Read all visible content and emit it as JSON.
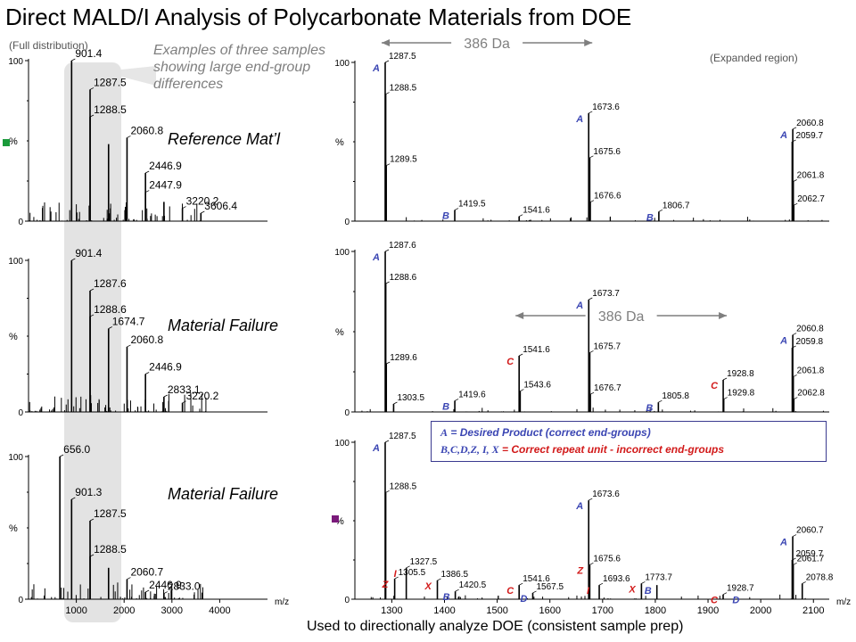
{
  "title": "Direct MALD/I Analysis of Polycarbonate Materials from DOE",
  "full_label": "(Full distribution)",
  "expanded_label": "(Expanded region)",
  "note": "Examples of three samples showing large end-group differences",
  "sample_labels": [
    "Reference Mat’l",
    "Material Failure",
    "Material Failure"
  ],
  "caption": "Used to directionally analyze DOE (consistent sample prep)",
  "legend": {
    "line1_sym": "A",
    "line1_text": " = Desired Product (correct end-groups)",
    "line2_sym": "B,C,D,Z, I, X",
    "line2_text": " = Correct repeat unit - incorrect end-groups"
  },
  "colors": {
    "blue": "#3b46b3",
    "red": "#d21a1a",
    "green": "#1a9a3a",
    "purple": "#7a1a7a",
    "band": "#e3e3e3"
  },
  "chart_data": [
    {
      "type": "bar",
      "panel": "full-1",
      "xlabel": "",
      "ylabel": "%",
      "xlim": [
        0,
        5000
      ],
      "ylim": [
        0,
        100
      ],
      "yticks": [
        0,
        100
      ],
      "xticks": [],
      "peaks": [
        [
          901.4,
          100
        ],
        [
          1287.5,
          82
        ],
        [
          1288.5,
          65
        ],
        [
          1674.7,
          48
        ],
        [
          2060.8,
          52
        ],
        [
          2446.9,
          30
        ],
        [
          2447.9,
          18
        ],
        [
          2833.1,
          12
        ],
        [
          3220.2,
          8
        ],
        [
          3606.4,
          5
        ]
      ],
      "labels": [
        {
          "t": "901.4",
          "x": 901.4,
          "y": 100
        },
        {
          "t": "1287.5",
          "x": 1287.5,
          "y": 82
        },
        {
          "t": "1288.5",
          "x": 1288.5,
          "y": 65
        },
        {
          "t": "2060.8",
          "x": 2060.8,
          "y": 52
        },
        {
          "t": "2446.9",
          "x": 2446.9,
          "y": 30
        },
        {
          "t": "2447.9",
          "x": 2447.9,
          "y": 18
        },
        {
          "t": "3220.2",
          "x": 3220.2,
          "y": 8
        },
        {
          "t": "3606.4",
          "x": 3606.4,
          "y": 5
        }
      ]
    },
    {
      "type": "bar",
      "panel": "full-2",
      "xlabel": "",
      "ylabel": "%",
      "xlim": [
        0,
        5000
      ],
      "ylim": [
        0,
        100
      ],
      "yticks": [
        0,
        100
      ],
      "xticks": [],
      "peaks": [
        [
          901.4,
          100
        ],
        [
          1287.6,
          80
        ],
        [
          1288.6,
          63
        ],
        [
          1674.7,
          55
        ],
        [
          2060.8,
          43
        ],
        [
          2446.9,
          25
        ],
        [
          2833.1,
          10
        ],
        [
          3220.2,
          6
        ]
      ],
      "labels": [
        {
          "t": "901.4",
          "x": 901.4,
          "y": 100
        },
        {
          "t": "1287.6",
          "x": 1287.6,
          "y": 80
        },
        {
          "t": "1288.6",
          "x": 1288.6,
          "y": 63
        },
        {
          "t": "1674.7",
          "x": 1674.7,
          "y": 55
        },
        {
          "t": "2060.8",
          "x": 2060.8,
          "y": 43
        },
        {
          "t": "2446.9",
          "x": 2446.9,
          "y": 25
        },
        {
          "t": "2833.1",
          "x": 2833.1,
          "y": 10
        },
        {
          "t": "3220.2",
          "x": 3220.2,
          "y": 6
        }
      ]
    },
    {
      "type": "bar",
      "panel": "full-3",
      "xlabel": "m/z",
      "ylabel": "%",
      "xlim": [
        0,
        5000
      ],
      "ylim": [
        0,
        100
      ],
      "yticks": [
        0,
        100
      ],
      "xticks": [
        1000,
        2000,
        3000,
        4000
      ],
      "peaks": [
        [
          656.0,
          100
        ],
        [
          901.3,
          70
        ],
        [
          1287.5,
          55
        ],
        [
          1288.5,
          30
        ],
        [
          1674.7,
          22
        ],
        [
          2060.7,
          14
        ],
        [
          2446.9,
          5
        ],
        [
          2833.0,
          4
        ]
      ],
      "labels": [
        {
          "t": "656.0",
          "x": 656.0,
          "y": 100
        },
        {
          "t": "901.3",
          "x": 901.3,
          "y": 70
        },
        {
          "t": "1287.5",
          "x": 1287.5,
          "y": 55
        },
        {
          "t": "1288.5",
          "x": 1288.5,
          "y": 30
        },
        {
          "t": "2060.7",
          "x": 2060.7,
          "y": 14
        },
        {
          "t": "2446.9",
          "x": 2446.9,
          "y": 5
        },
        {
          "t": "2833.0",
          "x": 2833.0,
          "y": 4
        }
      ]
    },
    {
      "type": "bar",
      "panel": "expanded-1",
      "xlabel": "",
      "ylabel": "%",
      "xlim": [
        1230,
        2130
      ],
      "ylim": [
        0,
        100
      ],
      "yticks": [
        0,
        100
      ],
      "xticks": [],
      "peaks": [
        [
          1287.5,
          100
        ],
        [
          1288.5,
          80
        ],
        [
          1289.5,
          35
        ],
        [
          1419.5,
          7
        ],
        [
          1541.6,
          3
        ],
        [
          1673.6,
          68
        ],
        [
          1675.6,
          40
        ],
        [
          1676.6,
          12
        ],
        [
          1806.7,
          6
        ],
        [
          2059.7,
          50
        ],
        [
          2060.8,
          58
        ],
        [
          2061.8,
          25
        ],
        [
          2062.7,
          10
        ]
      ],
      "labels": [
        {
          "t": "1287.5",
          "x": 1287.5,
          "y": 100
        },
        {
          "t": "1288.5",
          "x": 1288.5,
          "y": 80
        },
        {
          "t": "1289.5",
          "x": 1289.5,
          "y": 35
        },
        {
          "t": "1419.5",
          "x": 1419.5,
          "y": 7
        },
        {
          "t": "1541.6",
          "x": 1541.6,
          "y": 3
        },
        {
          "t": "1673.6",
          "x": 1673.6,
          "y": 68
        },
        {
          "t": "1675.6",
          "x": 1675.6,
          "y": 40
        },
        {
          "t": "1676.6",
          "x": 1676.6,
          "y": 12
        },
        {
          "t": "1806.7",
          "x": 1806.7,
          "y": 6
        },
        {
          "t": "2059.7",
          "x": 2059.7,
          "y": 50
        },
        {
          "t": "2060.8",
          "x": 2060.8,
          "y": 58
        },
        {
          "t": "2061.8",
          "x": 2061.8,
          "y": 25
        },
        {
          "t": "2062.7",
          "x": 2062.7,
          "y": 10
        }
      ],
      "annotations": [
        {
          "t": "A",
          "x": 1287.5,
          "y": 100,
          "c": "blue"
        },
        {
          "t": "A",
          "x": 1673.6,
          "y": 68,
          "c": "blue"
        },
        {
          "t": "A",
          "x": 2060.8,
          "y": 58,
          "c": "blue"
        },
        {
          "t": "B",
          "x": 1419.5,
          "y": 7,
          "c": "blue"
        },
        {
          "t": "B",
          "x": 1806.7,
          "y": 6,
          "c": "blue"
        }
      ],
      "span": {
        "t": "386 Da",
        "from": 1287.5,
        "to": 1673.6
      }
    },
    {
      "type": "bar",
      "panel": "expanded-2",
      "xlabel": "",
      "ylabel": "%",
      "xlim": [
        1230,
        2130
      ],
      "ylim": [
        0,
        100
      ],
      "yticks": [
        0,
        100
      ],
      "xticks": [],
      "peaks": [
        [
          1287.6,
          100
        ],
        [
          1288.6,
          80
        ],
        [
          1289.6,
          30
        ],
        [
          1303.5,
          5
        ],
        [
          1419.6,
          7
        ],
        [
          1541.6,
          35
        ],
        [
          1543.6,
          13
        ],
        [
          1673.7,
          70
        ],
        [
          1675.7,
          37
        ],
        [
          1676.7,
          11
        ],
        [
          1805.8,
          6
        ],
        [
          1928.8,
          20
        ],
        [
          1929.8,
          8
        ],
        [
          2059.8,
          40
        ],
        [
          2060.8,
          48
        ],
        [
          2061.8,
          22
        ],
        [
          2062.8,
          8
        ]
      ],
      "labels": [
        {
          "t": "1287.6",
          "x": 1287.6,
          "y": 100
        },
        {
          "t": "1288.6",
          "x": 1288.6,
          "y": 80
        },
        {
          "t": "1289.6",
          "x": 1289.6,
          "y": 30
        },
        {
          "t": "1303.5",
          "x": 1303.5,
          "y": 5
        },
        {
          "t": "1419.6",
          "x": 1419.6,
          "y": 7
        },
        {
          "t": "1541.6",
          "x": 1541.6,
          "y": 35
        },
        {
          "t": "1543.6",
          "x": 1543.6,
          "y": 13
        },
        {
          "t": "1673.7",
          "x": 1673.7,
          "y": 70
        },
        {
          "t": "1675.7",
          "x": 1675.7,
          "y": 37
        },
        {
          "t": "1676.7",
          "x": 1676.7,
          "y": 11
        },
        {
          "t": "1805.8",
          "x": 1805.8,
          "y": 6
        },
        {
          "t": "1928.8",
          "x": 1928.8,
          "y": 20
        },
        {
          "t": "1929.8",
          "x": 1929.8,
          "y": 8
        },
        {
          "t": "2059.8",
          "x": 2059.8,
          "y": 40
        },
        {
          "t": "2060.8",
          "x": 2060.8,
          "y": 48
        },
        {
          "t": "2061.8",
          "x": 2061.8,
          "y": 22
        },
        {
          "t": "2062.8",
          "x": 2062.8,
          "y": 8
        }
      ],
      "annotations": [
        {
          "t": "A",
          "x": 1287.6,
          "y": 100,
          "c": "blue"
        },
        {
          "t": "A",
          "x": 1673.7,
          "y": 70,
          "c": "blue"
        },
        {
          "t": "A",
          "x": 2060.8,
          "y": 48,
          "c": "blue"
        },
        {
          "t": "B",
          "x": 1419.6,
          "y": 7,
          "c": "blue"
        },
        {
          "t": "B",
          "x": 1805.8,
          "y": 6,
          "c": "blue"
        },
        {
          "t": "C",
          "x": 1541.6,
          "y": 35,
          "c": "red"
        },
        {
          "t": "C",
          "x": 1928.8,
          "y": 20,
          "c": "red"
        }
      ],
      "span": {
        "t": "386 Da",
        "from": 1541.6,
        "to": 1928.8
      }
    },
    {
      "type": "bar",
      "panel": "expanded-3",
      "xlabel": "m/z",
      "ylabel": "%",
      "xlim": [
        1230,
        2130
      ],
      "ylim": [
        0,
        100
      ],
      "yticks": [
        0,
        100
      ],
      "xticks": [
        1300,
        1400,
        1500,
        1600,
        1700,
        1800,
        1900,
        2000,
        2100
      ],
      "peaks": [
        [
          1287.5,
          100
        ],
        [
          1288.5,
          68
        ],
        [
          1305.5,
          13
        ],
        [
          1327.5,
          20
        ],
        [
          1386.5,
          12
        ],
        [
          1420.5,
          5
        ],
        [
          1541.6,
          9
        ],
        [
          1567.5,
          4
        ],
        [
          1673.6,
          63
        ],
        [
          1675.6,
          22
        ],
        [
          1693.6,
          9
        ],
        [
          1773.7,
          10
        ],
        [
          1803,
          9
        ],
        [
          1928.7,
          3
        ],
        [
          2059.7,
          25
        ],
        [
          2060.7,
          40
        ],
        [
          2061.7,
          22
        ],
        [
          2078.8,
          10
        ]
      ],
      "labels": [
        {
          "t": "1287.5",
          "x": 1287.5,
          "y": 100
        },
        {
          "t": "1288.5",
          "x": 1288.5,
          "y": 68
        },
        {
          "t": "1305.5",
          "x": 1305.5,
          "y": 13
        },
        {
          "t": "1327.5",
          "x": 1327.5,
          "y": 20
        },
        {
          "t": "1386.5",
          "x": 1386.5,
          "y": 12
        },
        {
          "t": "1420.5",
          "x": 1420.5,
          "y": 5
        },
        {
          "t": "1541.6",
          "x": 1541.6,
          "y": 9
        },
        {
          "t": "1567.5",
          "x": 1567.5,
          "y": 4
        },
        {
          "t": "1673.6",
          "x": 1673.6,
          "y": 63
        },
        {
          "t": "1675.6",
          "x": 1675.6,
          "y": 22
        },
        {
          "t": "1693.6",
          "x": 1693.6,
          "y": 9
        },
        {
          "t": "1773.7",
          "x": 1773.7,
          "y": 10
        },
        {
          "t": "1928.7",
          "x": 1928.7,
          "y": 3
        },
        {
          "t": "2059.7",
          "x": 2059.7,
          "y": 25
        },
        {
          "t": "2060.7",
          "x": 2060.7,
          "y": 40
        },
        {
          "t": "2061.7",
          "x": 2061.7,
          "y": 22
        },
        {
          "t": "2078.8",
          "x": 2078.8,
          "y": 10
        }
      ],
      "annotations": [
        {
          "t": "A",
          "x": 1287.5,
          "y": 100,
          "c": "blue"
        },
        {
          "t": "A",
          "x": 1673.6,
          "y": 63,
          "c": "blue"
        },
        {
          "t": "A",
          "x": 2060.7,
          "y": 40,
          "c": "blue"
        },
        {
          "t": "Z",
          "x": 1305.5,
          "y": 13,
          "c": "red"
        },
        {
          "t": "I",
          "x": 1327.5,
          "y": 20,
          "c": "red"
        },
        {
          "t": "X",
          "x": 1386.5,
          "y": 12,
          "c": "red"
        },
        {
          "t": "B",
          "x": 1420.5,
          "y": 5,
          "c": "blue"
        },
        {
          "t": "C",
          "x": 1541.6,
          "y": 9,
          "c": "red"
        },
        {
          "t": "D",
          "x": 1567.5,
          "y": 4,
          "c": "blue"
        },
        {
          "t": "Z",
          "x": 1675.6,
          "y": 22,
          "c": "red"
        },
        {
          "t": "I",
          "x": 1693.6,
          "y": 9,
          "c": "red"
        },
        {
          "t": "X",
          "x": 1773.7,
          "y": 10,
          "c": "red"
        },
        {
          "t": "B",
          "x": 1803,
          "y": 9,
          "c": "blue"
        },
        {
          "t": "C",
          "x": 1928.7,
          "y": 3,
          "c": "red"
        },
        {
          "t": "D",
          "x": 1970,
          "y": 3,
          "c": "blue"
        }
      ]
    }
  ]
}
